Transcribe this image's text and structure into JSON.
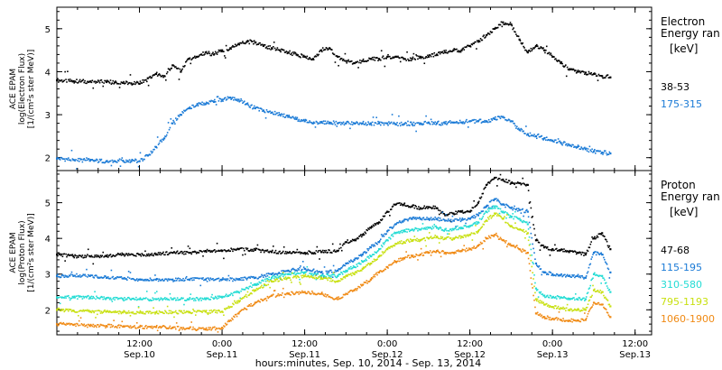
{
  "figure": {
    "xlabel": "hours:minutes, Sep. 10, 2014 - Sep. 13, 2014",
    "xticks": [
      {
        "t": 0.5,
        "time": "12:00",
        "date": "Sep.10"
      },
      {
        "t": 1.0,
        "time": "0:00",
        "date": "Sep.11"
      },
      {
        "t": 1.5,
        "time": "12:00",
        "date": "Sep.11"
      },
      {
        "t": 2.0,
        "time": "0:00",
        "date": "Sep.12"
      },
      {
        "t": 2.5,
        "time": "12:00",
        "date": "Sep.12"
      },
      {
        "t": 3.0,
        "time": "0:00",
        "date": "Sep.13"
      },
      {
        "t": 3.5,
        "time": "12:00",
        "date": "Sep.13"
      }
    ]
  },
  "chart_data": [
    {
      "type": "scatter",
      "ylabel_lines": [
        "ACE EPAM",
        "log(Electron Flux)",
        "[1/(cm²s ster MeV)]"
      ],
      "ylim": [
        1.7,
        5.5
      ],
      "yticks": [
        2,
        3,
        4,
        5
      ],
      "legend_title": [
        "Electron",
        "Energy ran"
      ],
      "legend_unit": "[keV]",
      "series": [
        {
          "name": "38-53",
          "color": "#000000",
          "x": [
            0.0,
            0.1,
            0.2,
            0.3,
            0.35,
            0.4,
            0.45,
            0.5,
            0.55,
            0.6,
            0.65,
            0.7,
            0.75,
            0.8,
            0.85,
            0.9,
            0.95,
            1.0,
            1.05,
            1.1,
            1.15,
            1.2,
            1.25,
            1.3,
            1.35,
            1.4,
            1.45,
            1.5,
            1.55,
            1.6,
            1.65,
            1.7,
            1.75,
            1.8,
            1.85,
            1.9,
            1.95,
            2.0,
            2.05,
            2.1,
            2.15,
            2.2,
            2.25,
            2.3,
            2.35,
            2.4,
            2.45,
            2.5,
            2.55,
            2.6,
            2.65,
            2.7,
            2.75,
            2.8,
            2.85,
            2.9,
            2.95,
            3.0,
            3.05,
            3.1,
            3.15,
            3.2,
            3.25,
            3.3,
            3.35
          ],
          "y": [
            3.8,
            3.78,
            3.77,
            3.76,
            3.75,
            3.74,
            3.73,
            3.72,
            3.85,
            3.95,
            3.9,
            4.15,
            4.0,
            4.3,
            4.35,
            4.45,
            4.4,
            4.5,
            4.55,
            4.65,
            4.7,
            4.68,
            4.6,
            4.55,
            4.5,
            4.45,
            4.4,
            4.35,
            4.3,
            4.5,
            4.55,
            4.35,
            4.25,
            4.2,
            4.25,
            4.3,
            4.3,
            4.35,
            4.35,
            4.3,
            4.3,
            4.35,
            4.35,
            4.4,
            4.45,
            4.5,
            4.5,
            4.6,
            4.7,
            4.85,
            5.0,
            5.15,
            5.1,
            4.75,
            4.45,
            4.6,
            4.5,
            4.35,
            4.2,
            4.05,
            4.0,
            3.98,
            3.95,
            3.9,
            3.87
          ]
        },
        {
          "name": "175-315",
          "color": "#1a7ad6",
          "x": [
            0.0,
            0.1,
            0.2,
            0.3,
            0.35,
            0.4,
            0.45,
            0.5,
            0.55,
            0.6,
            0.65,
            0.7,
            0.75,
            0.8,
            0.85,
            0.9,
            0.95,
            1.0,
            1.05,
            1.1,
            1.15,
            1.2,
            1.25,
            1.3,
            1.35,
            1.4,
            1.45,
            1.5,
            1.55,
            1.6,
            1.65,
            1.7,
            1.75,
            1.8,
            1.85,
            1.9,
            1.95,
            2.0,
            2.05,
            2.1,
            2.15,
            2.2,
            2.25,
            2.3,
            2.35,
            2.4,
            2.45,
            2.5,
            2.55,
            2.6,
            2.65,
            2.7,
            2.75,
            2.8,
            2.85,
            2.9,
            2.95,
            3.0,
            3.05,
            3.1,
            3.15,
            3.2,
            3.25,
            3.3,
            3.35
          ],
          "y": [
            1.98,
            1.95,
            1.93,
            1.92,
            1.92,
            1.93,
            1.92,
            1.92,
            2.05,
            2.25,
            2.45,
            2.8,
            3.0,
            3.15,
            3.25,
            3.25,
            3.3,
            3.35,
            3.4,
            3.35,
            3.25,
            3.15,
            3.1,
            3.05,
            3.0,
            2.95,
            2.9,
            2.85,
            2.8,
            2.82,
            2.82,
            2.8,
            2.8,
            2.8,
            2.8,
            2.8,
            2.8,
            2.8,
            2.78,
            2.78,
            2.78,
            2.8,
            2.82,
            2.8,
            2.8,
            2.82,
            2.82,
            2.85,
            2.85,
            2.85,
            2.9,
            2.95,
            2.85,
            2.65,
            2.55,
            2.5,
            2.45,
            2.4,
            2.35,
            2.3,
            2.25,
            2.2,
            2.15,
            2.12,
            2.1
          ]
        }
      ]
    },
    {
      "type": "scatter",
      "ylabel_lines": [
        "ACE EPAM",
        "log(Proton Flux)",
        "[1/(cm²s ster MeV)]"
      ],
      "ylim": [
        1.3,
        5.9
      ],
      "yticks": [
        2,
        3,
        4,
        5
      ],
      "legend_title": [
        "Proton",
        "Energy ran"
      ],
      "legend_unit": "[keV]",
      "series": [
        {
          "name": "47-68",
          "color": "#000000",
          "x": [
            0.0,
            0.1,
            0.2,
            0.3,
            0.4,
            0.5,
            0.6,
            0.7,
            0.8,
            0.9,
            1.0,
            1.1,
            1.2,
            1.3,
            1.4,
            1.5,
            1.6,
            1.7,
            1.75,
            1.8,
            1.85,
            1.9,
            1.95,
            2.0,
            2.05,
            2.1,
            2.15,
            2.2,
            2.25,
            2.3,
            2.35,
            2.4,
            2.45,
            2.5,
            2.55,
            2.6,
            2.65,
            2.7,
            2.75,
            2.8,
            2.85,
            2.9,
            2.95,
            3.0,
            3.05,
            3.1,
            3.15,
            3.2,
            3.25,
            3.3,
            3.35
          ],
          "y": [
            3.55,
            3.5,
            3.5,
            3.5,
            3.55,
            3.55,
            3.55,
            3.6,
            3.6,
            3.65,
            3.65,
            3.7,
            3.68,
            3.62,
            3.6,
            3.6,
            3.62,
            3.65,
            3.9,
            3.95,
            4.1,
            4.3,
            4.45,
            4.75,
            4.95,
            4.95,
            4.9,
            4.85,
            4.88,
            4.85,
            4.65,
            4.7,
            4.75,
            4.75,
            5.0,
            5.5,
            5.7,
            5.65,
            5.55,
            5.55,
            5.5,
            3.95,
            3.75,
            3.7,
            3.68,
            3.62,
            3.6,
            3.55,
            4.0,
            4.15,
            3.7
          ]
        },
        {
          "name": "115-195",
          "color": "#1a7ad6",
          "x": [
            0.0,
            0.1,
            0.2,
            0.3,
            0.4,
            0.5,
            0.6,
            0.7,
            0.8,
            0.9,
            1.0,
            1.1,
            1.2,
            1.3,
            1.4,
            1.5,
            1.6,
            1.7,
            1.75,
            1.8,
            1.85,
            1.9,
            1.95,
            2.0,
            2.05,
            2.1,
            2.15,
            2.2,
            2.25,
            2.3,
            2.35,
            2.4,
            2.45,
            2.5,
            2.55,
            2.6,
            2.65,
            2.7,
            2.75,
            2.8,
            2.85,
            2.9,
            2.95,
            3.0,
            3.05,
            3.1,
            3.15,
            3.2,
            3.25,
            3.3,
            3.35
          ],
          "y": [
            2.95,
            2.95,
            2.95,
            2.9,
            2.88,
            2.85,
            2.85,
            2.85,
            2.85,
            2.85,
            2.85,
            2.85,
            2.9,
            3.0,
            3.1,
            3.15,
            3.05,
            3.1,
            3.3,
            3.4,
            3.55,
            3.75,
            3.9,
            4.2,
            4.4,
            4.5,
            4.55,
            4.55,
            4.55,
            4.55,
            4.5,
            4.5,
            4.52,
            4.55,
            4.65,
            4.9,
            5.1,
            4.95,
            4.85,
            4.8,
            4.75,
            3.3,
            3.05,
            3.0,
            2.98,
            2.95,
            2.95,
            2.9,
            3.6,
            3.55,
            3.05
          ]
        },
        {
          "name": "310-580",
          "color": "#22dcd4",
          "x": [
            0.0,
            0.1,
            0.2,
            0.3,
            0.4,
            0.5,
            0.6,
            0.7,
            0.8,
            0.9,
            1.0,
            1.1,
            1.2,
            1.3,
            1.4,
            1.5,
            1.6,
            1.7,
            1.75,
            1.8,
            1.85,
            1.9,
            1.95,
            2.0,
            2.05,
            2.1,
            2.15,
            2.2,
            2.25,
            2.3,
            2.35,
            2.4,
            2.45,
            2.5,
            2.55,
            2.6,
            2.65,
            2.7,
            2.75,
            2.8,
            2.85,
            2.9,
            2.95,
            3.0,
            3.05,
            3.1,
            3.15,
            3.2,
            3.25,
            3.3,
            3.35
          ],
          "y": [
            2.35,
            2.35,
            2.35,
            2.33,
            2.3,
            2.3,
            2.3,
            2.3,
            2.3,
            2.3,
            2.35,
            2.5,
            2.7,
            2.9,
            3.0,
            3.05,
            2.95,
            2.95,
            3.1,
            3.2,
            3.35,
            3.5,
            3.7,
            3.95,
            4.15,
            4.2,
            4.25,
            4.25,
            4.3,
            4.3,
            4.25,
            4.25,
            4.3,
            4.35,
            4.45,
            4.75,
            4.9,
            4.75,
            4.6,
            4.55,
            4.4,
            2.6,
            2.4,
            2.35,
            2.35,
            2.3,
            2.3,
            2.3,
            3.0,
            2.95,
            2.5
          ]
        },
        {
          "name": "795-1193",
          "color": "#c8e010",
          "x": [
            0.0,
            0.1,
            0.2,
            0.3,
            0.4,
            0.5,
            0.6,
            0.7,
            0.8,
            0.9,
            1.0,
            1.1,
            1.2,
            1.3,
            1.4,
            1.5,
            1.6,
            1.7,
            1.75,
            1.8,
            1.85,
            1.9,
            1.95,
            2.0,
            2.05,
            2.1,
            2.15,
            2.2,
            2.25,
            2.3,
            2.35,
            2.4,
            2.45,
            2.5,
            2.55,
            2.6,
            2.65,
            2.7,
            2.75,
            2.8,
            2.85,
            2.9,
            2.95,
            3.0,
            3.05,
            3.1,
            3.15,
            3.2,
            3.25,
            3.3,
            3.35
          ],
          "y": [
            2.0,
            1.98,
            1.95,
            1.95,
            1.93,
            1.92,
            1.93,
            1.93,
            1.93,
            1.95,
            1.95,
            2.25,
            2.55,
            2.8,
            2.9,
            2.95,
            2.9,
            2.8,
            2.95,
            3.0,
            3.15,
            3.3,
            3.5,
            3.7,
            3.85,
            3.9,
            3.95,
            3.95,
            4.0,
            4.05,
            4.0,
            4.0,
            4.05,
            4.1,
            4.2,
            4.5,
            4.7,
            4.55,
            4.35,
            4.25,
            4.15,
            2.3,
            2.15,
            2.08,
            2.05,
            2.0,
            2.0,
            2.0,
            2.55,
            2.5,
            2.1
          ]
        },
        {
          "name": "1060-1900",
          "color": "#f08a14",
          "x": [
            0.0,
            0.1,
            0.2,
            0.3,
            0.4,
            0.5,
            0.6,
            0.7,
            0.8,
            0.9,
            1.0,
            1.1,
            1.2,
            1.3,
            1.4,
            1.5,
            1.6,
            1.7,
            1.75,
            1.8,
            1.85,
            1.9,
            1.95,
            2.0,
            2.05,
            2.1,
            2.15,
            2.2,
            2.25,
            2.3,
            2.35,
            2.4,
            2.45,
            2.5,
            2.55,
            2.6,
            2.65,
            2.7,
            2.75,
            2.8,
            2.85,
            2.9,
            2.95,
            3.0,
            3.05,
            3.1,
            3.15,
            3.2,
            3.25,
            3.3,
            3.35
          ],
          "y": [
            1.6,
            1.58,
            1.55,
            1.55,
            1.53,
            1.52,
            1.52,
            1.5,
            1.48,
            1.45,
            1.5,
            1.9,
            2.2,
            2.4,
            2.45,
            2.5,
            2.45,
            2.3,
            2.45,
            2.55,
            2.7,
            2.85,
            3.05,
            3.2,
            3.35,
            3.45,
            3.5,
            3.55,
            3.6,
            3.65,
            3.6,
            3.6,
            3.65,
            3.7,
            3.8,
            4.0,
            4.1,
            3.95,
            3.8,
            3.7,
            3.6,
            1.9,
            1.8,
            1.75,
            1.72,
            1.7,
            1.7,
            1.72,
            2.2,
            2.15,
            1.8
          ]
        }
      ]
    }
  ]
}
